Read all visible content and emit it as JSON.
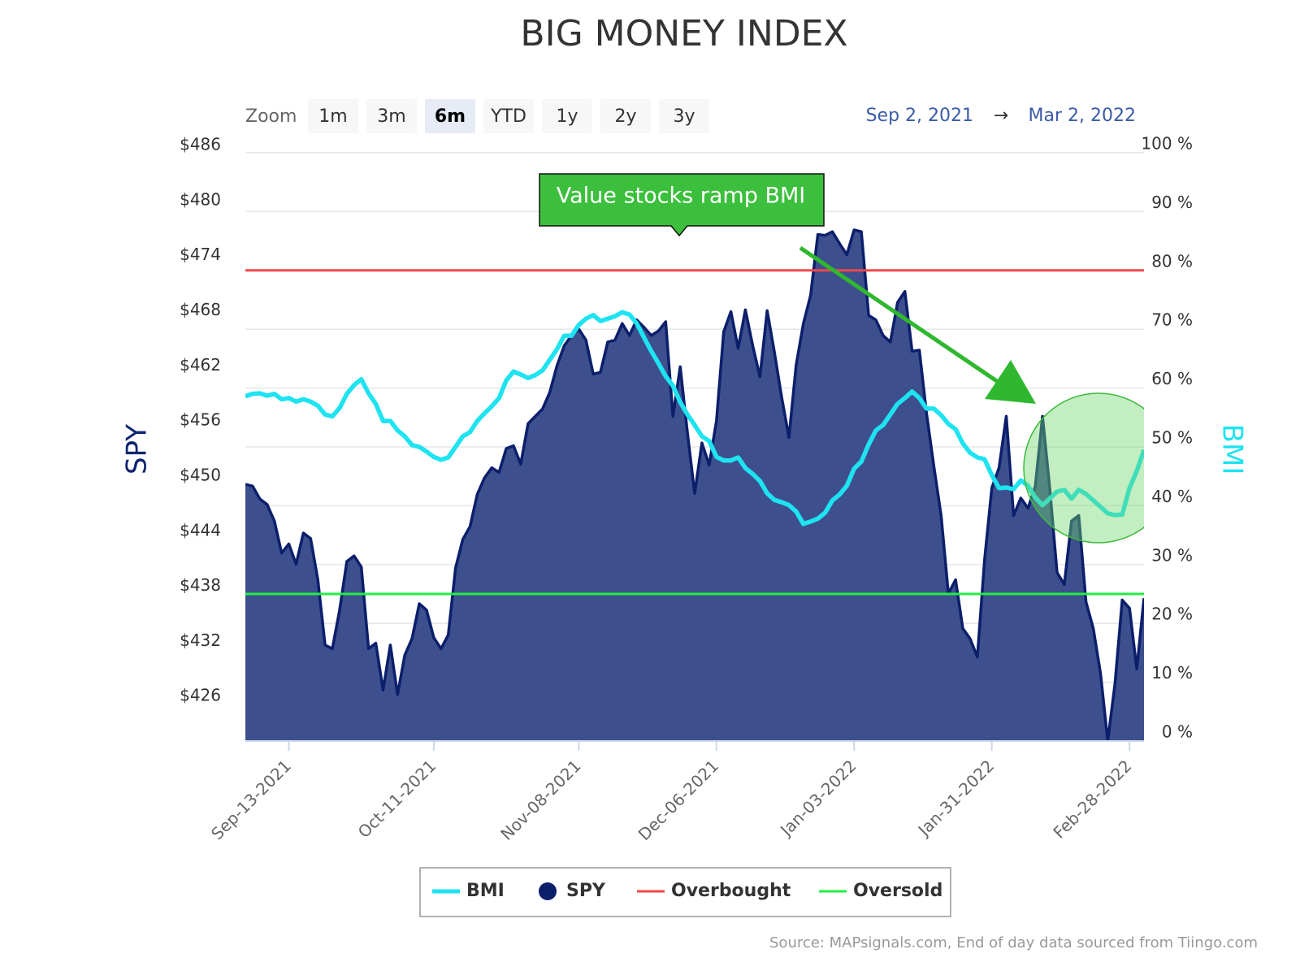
{
  "chart_data": {
    "type": "line",
    "title": "BIG MONEY INDEX",
    "zoom_label": "Zoom",
    "zoom_buttons": [
      "1m",
      "3m",
      "6m",
      "YTD",
      "1y",
      "2y",
      "3y"
    ],
    "zoom_selected": 2,
    "range_from": "Sep 2, 2021",
    "range_arrow": "→",
    "range_to": "Mar 2, 2022",
    "y_axis_title": "SPY",
    "y2_axis_title": "BMI",
    "annotation": "Value stocks ramp BMI",
    "source": "Source: MAPsignals.com, End of day data sourced from Tiingo.com",
    "categories": [
      "Sep-02-2021",
      "Sep-03-2021",
      "Sep-07-2021",
      "Sep-08-2021",
      "Sep-09-2021",
      "Sep-10-2021",
      "Sep-13-2021",
      "Sep-14-2021",
      "Sep-15-2021",
      "Sep-16-2021",
      "Sep-17-2021",
      "Sep-20-2021",
      "Sep-21-2021",
      "Sep-22-2021",
      "Sep-23-2021",
      "Sep-24-2021",
      "Sep-27-2021",
      "Sep-28-2021",
      "Sep-29-2021",
      "Sep-30-2021",
      "Oct-01-2021",
      "Oct-04-2021",
      "Oct-05-2021",
      "Oct-06-2021",
      "Oct-07-2021",
      "Oct-08-2021",
      "Oct-11-2021",
      "Oct-12-2021",
      "Oct-13-2021",
      "Oct-14-2021",
      "Oct-15-2021",
      "Oct-18-2021",
      "Oct-19-2021",
      "Oct-20-2021",
      "Oct-21-2021",
      "Oct-22-2021",
      "Oct-25-2021",
      "Oct-26-2021",
      "Oct-27-2021",
      "Oct-28-2021",
      "Oct-29-2021",
      "Nov-01-2021",
      "Nov-02-2021",
      "Nov-03-2021",
      "Nov-04-2021",
      "Nov-05-2021",
      "Nov-08-2021",
      "Nov-09-2021",
      "Nov-10-2021",
      "Nov-11-2021",
      "Nov-12-2021",
      "Nov-15-2021",
      "Nov-16-2021",
      "Nov-17-2021",
      "Nov-18-2021",
      "Nov-19-2021",
      "Nov-22-2021",
      "Nov-23-2021",
      "Nov-24-2021",
      "Nov-26-2021",
      "Nov-29-2021",
      "Nov-30-2021",
      "Dec-01-2021",
      "Dec-02-2021",
      "Dec-03-2021",
      "Dec-06-2021",
      "Dec-07-2021",
      "Dec-08-2021",
      "Dec-09-2021",
      "Dec-10-2021",
      "Dec-13-2021",
      "Dec-14-2021",
      "Dec-15-2021",
      "Dec-16-2021",
      "Dec-17-2021",
      "Dec-20-2021",
      "Dec-21-2021",
      "Dec-22-2021",
      "Dec-23-2021",
      "Dec-27-2021",
      "Dec-28-2021",
      "Dec-29-2021",
      "Dec-30-2021",
      "Dec-31-2021",
      "Jan-03-2022",
      "Jan-04-2022",
      "Jan-05-2022",
      "Jan-06-2022",
      "Jan-07-2022",
      "Jan-10-2022",
      "Jan-11-2022",
      "Jan-12-2022",
      "Jan-13-2022",
      "Jan-14-2022",
      "Jan-18-2022",
      "Jan-19-2022",
      "Jan-20-2022",
      "Jan-21-2022",
      "Jan-24-2022",
      "Jan-25-2022",
      "Jan-26-2022",
      "Jan-27-2022",
      "Jan-28-2022",
      "Jan-31-2022",
      "Feb-01-2022",
      "Feb-02-2022",
      "Feb-03-2022",
      "Feb-04-2022",
      "Feb-07-2022",
      "Feb-08-2022",
      "Feb-09-2022",
      "Feb-10-2022",
      "Feb-11-2022",
      "Feb-14-2022",
      "Feb-15-2022",
      "Feb-16-2022",
      "Feb-17-2022",
      "Feb-18-2022",
      "Feb-22-2022",
      "Feb-23-2022",
      "Feb-24-2022",
      "Feb-25-2022",
      "Feb-28-2022",
      "Mar-01-2022",
      "Mar-02-2022"
    ],
    "xticks": [
      "Sep-13-2021",
      "Oct-11-2021",
      "Nov-08-2021",
      "Dec-06-2021",
      "Jan-03-2022",
      "Jan-31-2022",
      "Feb-28-2022"
    ],
    "ylim": [
      421.95,
      486
    ],
    "yticks": [
      {
        "value": 426,
        "label": "$426"
      },
      {
        "value": 432,
        "label": "$432"
      },
      {
        "value": 438,
        "label": "$438"
      },
      {
        "value": 444,
        "label": "$444"
      },
      {
        "value": 450,
        "label": "$450"
      },
      {
        "value": 456,
        "label": "$456"
      },
      {
        "value": 462,
        "label": "$462"
      },
      {
        "value": 468,
        "label": "$468"
      },
      {
        "value": 474,
        "label": "$474"
      },
      {
        "value": 480,
        "label": "$480"
      },
      {
        "value": 486,
        "label": "$486"
      }
    ],
    "y2lim": [
      0,
      100
    ],
    "y2ticks": [
      {
        "value": 0,
        "label": "0 %"
      },
      {
        "value": 10,
        "label": "10 %"
      },
      {
        "value": 20,
        "label": "20 %"
      },
      {
        "value": 30,
        "label": "30 %"
      },
      {
        "value": 40,
        "label": "40 %"
      },
      {
        "value": 50,
        "label": "50 %"
      },
      {
        "value": 60,
        "label": "60 %"
      },
      {
        "value": 70,
        "label": "70 %"
      },
      {
        "value": 80,
        "label": "80 %"
      },
      {
        "value": 90,
        "label": "90 %"
      },
      {
        "value": 100,
        "label": "100 %"
      }
    ],
    "grid": "y2",
    "series": [
      {
        "name": "BMI",
        "type": "line",
        "axis": "y2",
        "color": "#1ee3f0",
        "values": [
          58.6,
          59.0,
          59.1,
          58.7,
          59.0,
          58.1,
          58.3,
          57.7,
          58.1,
          57.7,
          57.0,
          55.5,
          55.2,
          56.6,
          59.0,
          60.5,
          61.5,
          59.1,
          57.3,
          54.4,
          54.4,
          52.8,
          51.8,
          50.3,
          50.0,
          49.2,
          48.3,
          47.8,
          48.2,
          50.0,
          51.8,
          52.5,
          54.4,
          55.7,
          56.9,
          58.3,
          61.3,
          62.8,
          62.3,
          61.7,
          62.2,
          63.0,
          64.8,
          66.6,
          68.9,
          68.9,
          70.7,
          71.8,
          72.4,
          71.4,
          71.8,
          72.2,
          72.9,
          72.5,
          71.0,
          68.6,
          66.3,
          64.2,
          62.0,
          60.4,
          57.6,
          55.5,
          53.7,
          51.8,
          51.0,
          48.3,
          47.7,
          47.7,
          48.2,
          46.4,
          45.4,
          44.2,
          42.1,
          41.0,
          40.6,
          40.1,
          39.0,
          36.9,
          37.3,
          37.8,
          38.8,
          40.9,
          41.9,
          43.4,
          46.3,
          47.5,
          50.4,
          52.8,
          53.7,
          55.5,
          57.3,
          58.3,
          59.4,
          58.3,
          56.5,
          56.5,
          55.4,
          53.9,
          53.0,
          50.6,
          49.0,
          48.2,
          47.9,
          45.2,
          43.0,
          43.1,
          42.8,
          44.3,
          43.4,
          41.4,
          40.1,
          41.2,
          42.4,
          42.7,
          41.2,
          42.7,
          42.0,
          40.9,
          39.8,
          38.7,
          38.4,
          38.5,
          43.0,
          45.9,
          49.5
        ]
      },
      {
        "name": "SPY",
        "type": "area",
        "axis": "y",
        "color": "#0b1f6b",
        "fill": "#3e4f8e",
        "values": [
          449.9,
          449.7,
          448.3,
          447.7,
          445.9,
          442.4,
          443.4,
          441.2,
          444.6,
          444.0,
          439.5,
          432.4,
          432.0,
          436.2,
          441.5,
          442.1,
          440.9,
          432.0,
          432.6,
          427.5,
          432.4,
          427.0,
          431.3,
          433.1,
          436.9,
          436.2,
          433.2,
          432.0,
          433.5,
          440.8,
          443.9,
          445.3,
          448.8,
          450.6,
          451.7,
          451.2,
          453.8,
          454.1,
          452.1,
          456.5,
          457.3,
          458.1,
          459.9,
          462.8,
          465.0,
          466.1,
          466.8,
          465.6,
          461.9,
          462.1,
          465.4,
          465.6,
          467.4,
          466.1,
          467.8,
          467.0,
          466.1,
          466.6,
          467.6,
          457.3,
          462.7,
          455.5,
          448.9,
          454.4,
          452.0,
          456.8,
          466.5,
          468.7,
          464.7,
          468.9,
          465.0,
          461.6,
          468.8,
          464.3,
          459.4,
          455.0,
          462.9,
          467.4,
          470.5,
          477.1,
          477.0,
          477.4,
          476.1,
          474.9,
          477.6,
          477.4,
          468.3,
          467.8,
          466.1,
          465.4,
          469.7,
          470.9,
          464.4,
          464.5,
          457.6,
          451.9,
          446.5,
          438.0,
          439.5,
          434.2,
          433.1,
          431.1,
          441.7,
          449.5,
          451.7,
          457.3,
          446.5,
          448.4,
          447.3,
          449.7,
          457.3,
          449.5,
          440.3,
          439.0,
          445.9,
          446.5,
          437.1,
          434.2,
          429.3,
          421.95,
          428.2,
          437.3,
          436.4,
          429.8,
          437.5
        ]
      },
      {
        "name": "Overbought",
        "type": "level",
        "axis": "y2",
        "color": "#f0484a",
        "value": 80
      },
      {
        "name": "Oversold",
        "type": "level",
        "axis": "y2",
        "color": "#22ee44",
        "value": 25
      }
    ]
  }
}
